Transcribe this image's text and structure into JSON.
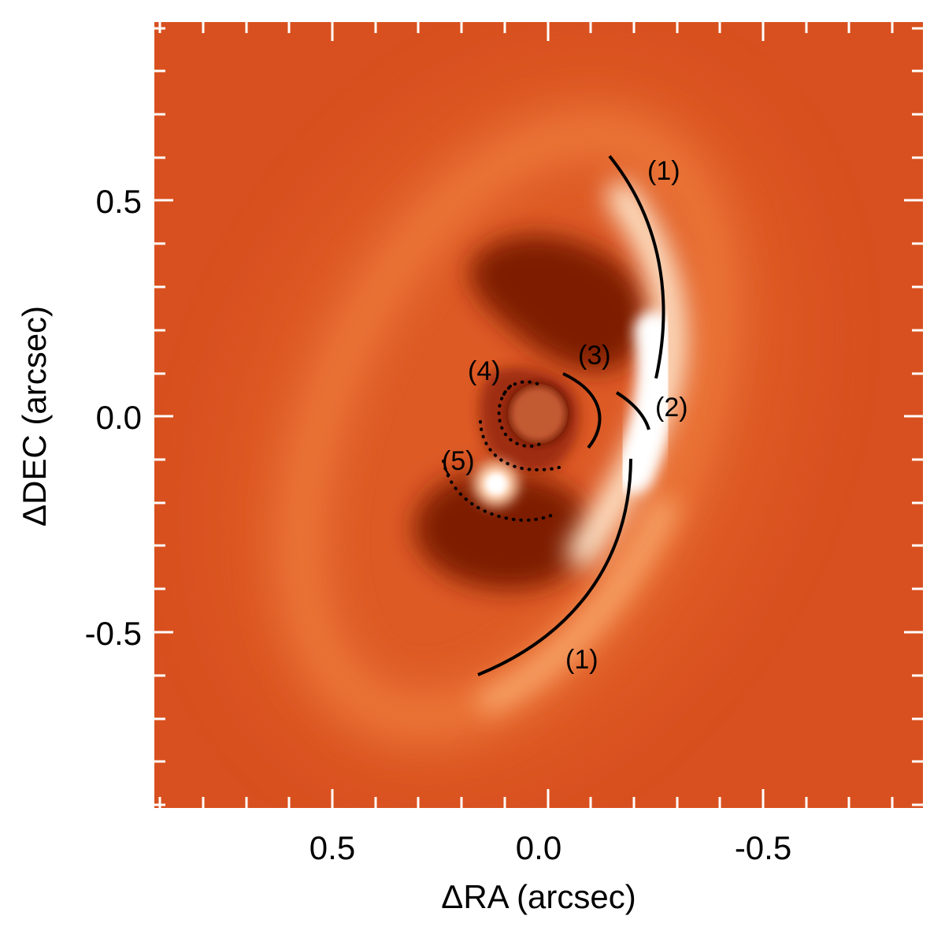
{
  "figure": {
    "xlabel": "ΔRA (arcsec)",
    "ylabel": "ΔDEC (arcsec)",
    "x_ticks": [
      {
        "value": 0.5,
        "label": "0.5"
      },
      {
        "value": 0.0,
        "label": "0.0"
      },
      {
        "value": -0.5,
        "label": "-0.5"
      }
    ],
    "y_ticks": [
      {
        "value": 0.5,
        "label": "0.5"
      },
      {
        "value": 0.0,
        "label": "0.0"
      },
      {
        "value": -0.5,
        "label": "-0.5"
      }
    ],
    "annotations": [
      {
        "id": "feature-1-north",
        "label": "(1)",
        "style": "solid"
      },
      {
        "id": "feature-1-south",
        "label": "(1)",
        "style": "solid"
      },
      {
        "id": "feature-2",
        "label": "(2)",
        "style": "solid"
      },
      {
        "id": "feature-3",
        "label": "(3)",
        "style": "solid"
      },
      {
        "id": "feature-4",
        "label": "(4)",
        "style": "dotted"
      },
      {
        "id": "feature-5",
        "label": "(5)",
        "style": "dotted"
      }
    ],
    "colors": {
      "background": "#d8501f",
      "highlight": "#ffffff",
      "shadow": "#7a1502",
      "annotation": "#000000"
    }
  }
}
